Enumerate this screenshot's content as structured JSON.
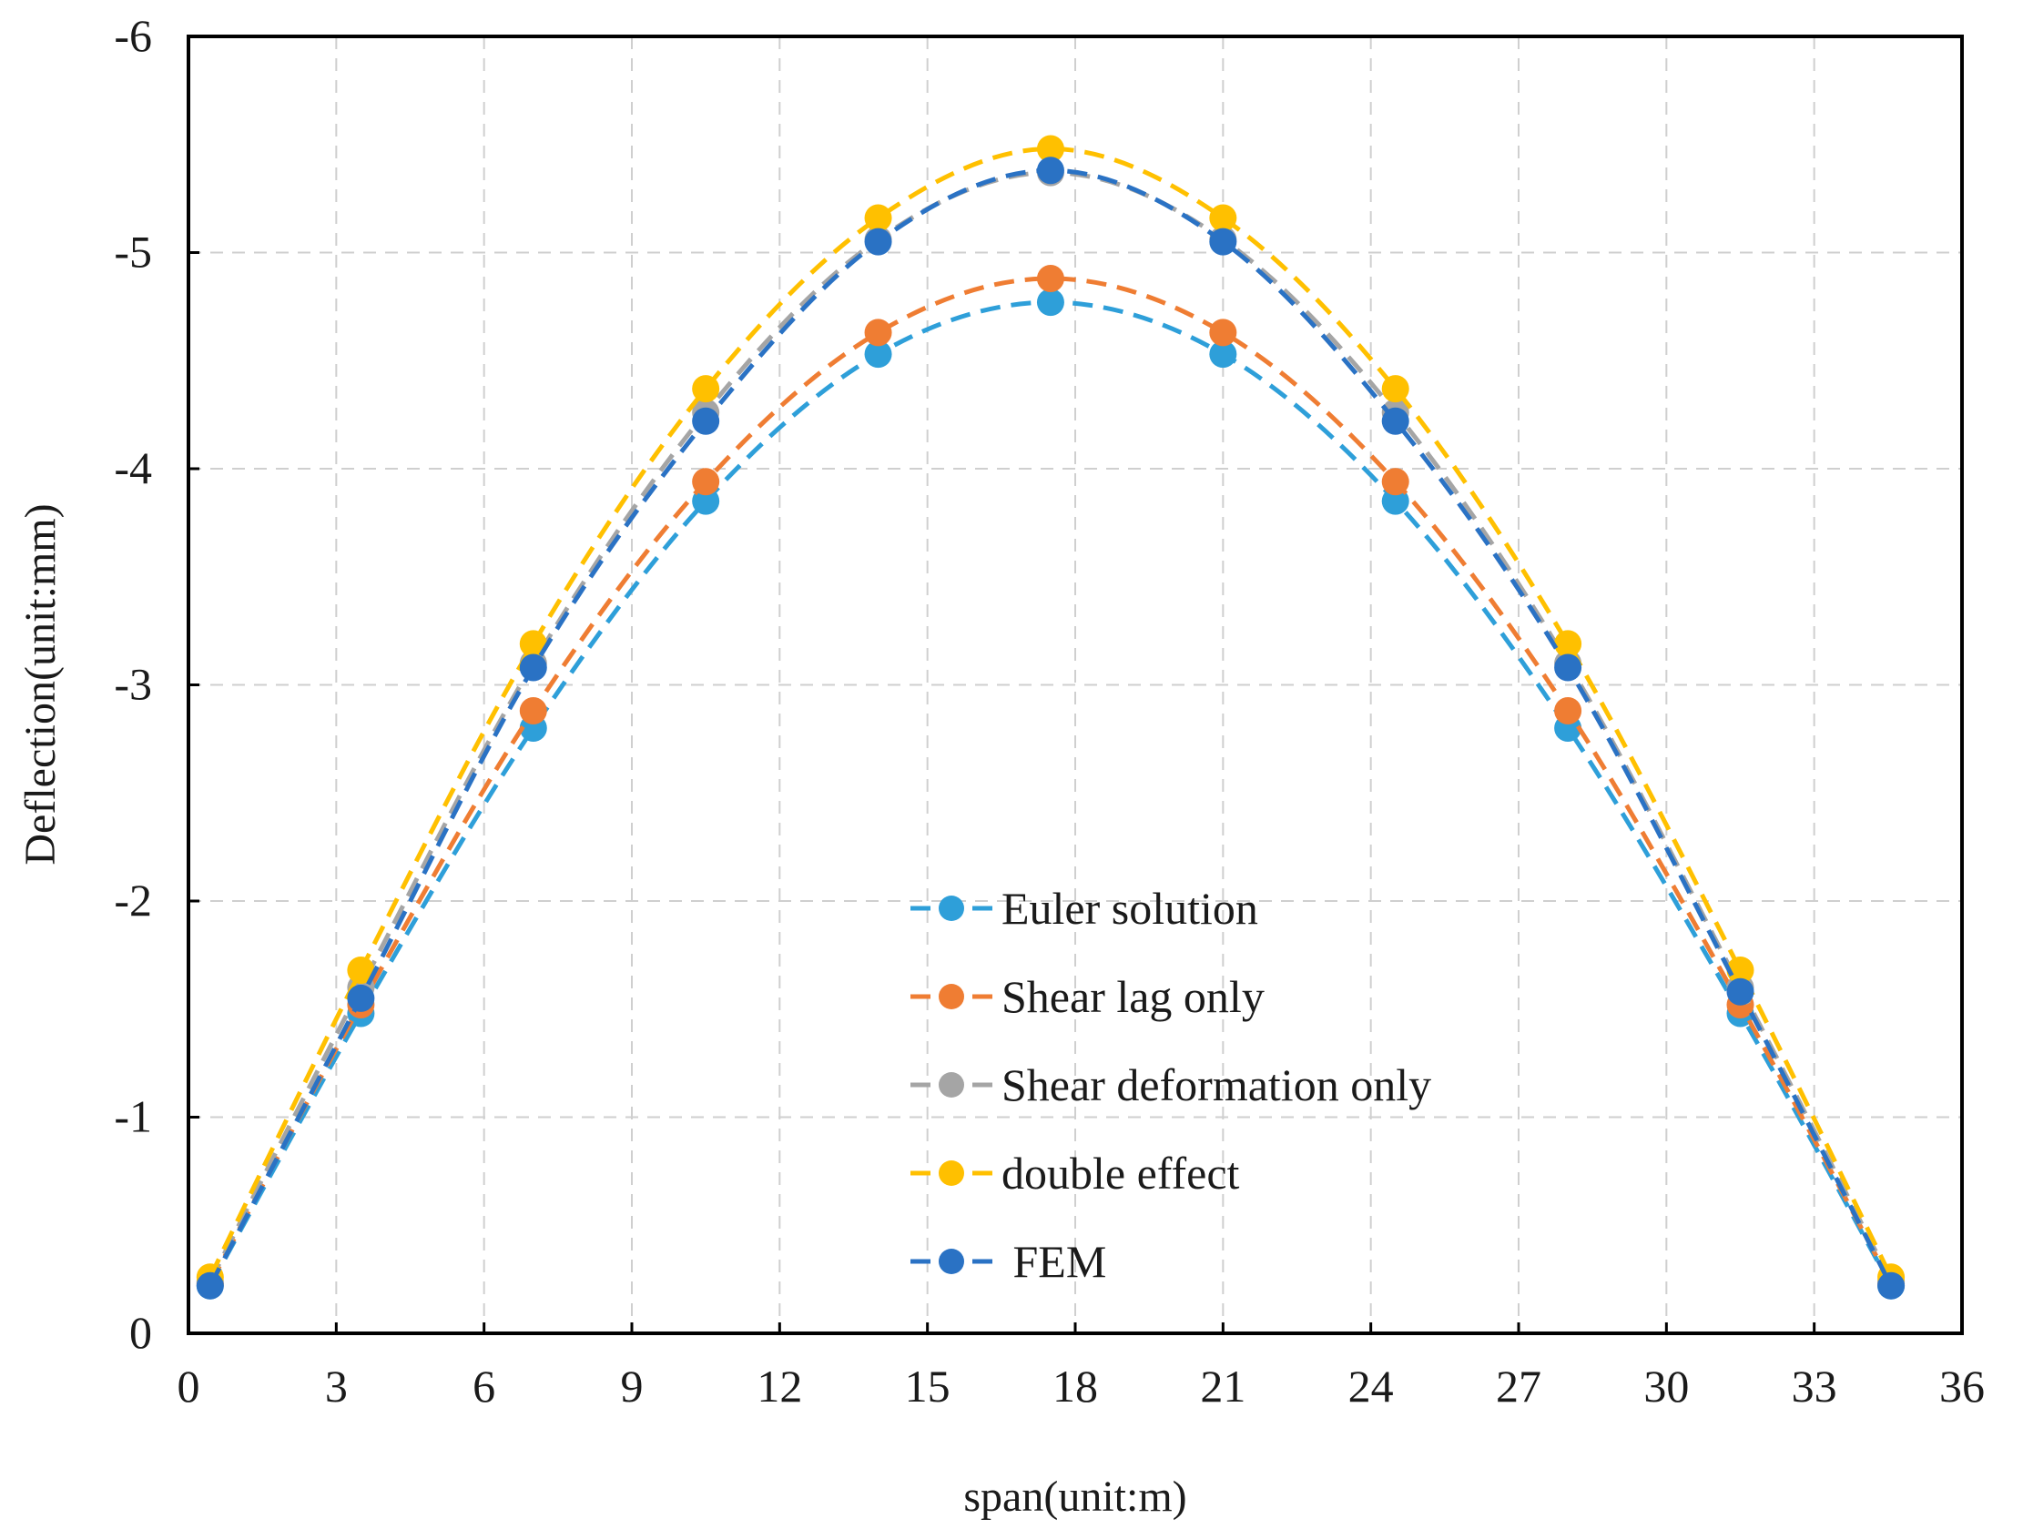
{
  "chart_data": {
    "type": "line",
    "xlabel": "span(unit:m)",
    "ylabel": "Deflection(unit:mm)",
    "xlim": [
      0,
      36
    ],
    "ylim": [
      0,
      -6
    ],
    "x_ticks": [
      0,
      3,
      6,
      9,
      12,
      15,
      18,
      21,
      24,
      27,
      30,
      33,
      36
    ],
    "y_ticks": [
      0,
      -1,
      -2,
      -3,
      -4,
      -5,
      -6
    ],
    "y_axis_inverted": true,
    "grid": true,
    "grid_style": "dashed",
    "legend_position": "center-bottom",
    "x": [
      0.44,
      3.5,
      7.0,
      10.5,
      14.0,
      17.5,
      21.0,
      24.5,
      28.0,
      31.5,
      34.56
    ],
    "series": [
      {
        "name": "Euler solution",
        "color": "#2e9fd9",
        "values": [
          -0.22,
          -1.48,
          -2.8,
          -3.85,
          -4.53,
          -4.77,
          -4.53,
          -3.85,
          -2.8,
          -1.48,
          -0.22
        ]
      },
      {
        "name": "Shear lag only",
        "color": "#ef7d33",
        "values": [
          -0.23,
          -1.52,
          -2.88,
          -3.94,
          -4.63,
          -4.88,
          -4.63,
          -3.94,
          -2.88,
          -1.52,
          -0.23
        ]
      },
      {
        "name": "Shear deformation only",
        "color": "#a5a5a5",
        "values": [
          -0.24,
          -1.6,
          -3.1,
          -4.26,
          -5.06,
          -5.37,
          -5.06,
          -4.26,
          -3.1,
          -1.6,
          -0.24
        ]
      },
      {
        "name": "double effect",
        "color": "#ffc000",
        "values": [
          -0.26,
          -1.68,
          -3.19,
          -4.37,
          -5.16,
          -5.48,
          -5.16,
          -4.37,
          -3.19,
          -1.68,
          -0.26
        ]
      },
      {
        "name": " FEM",
        "color": "#2a72c4",
        "values": [
          -0.22,
          -1.55,
          -3.08,
          -4.22,
          -5.05,
          -5.38,
          -5.05,
          -4.22,
          -3.08,
          -1.58,
          -0.22
        ]
      }
    ]
  }
}
